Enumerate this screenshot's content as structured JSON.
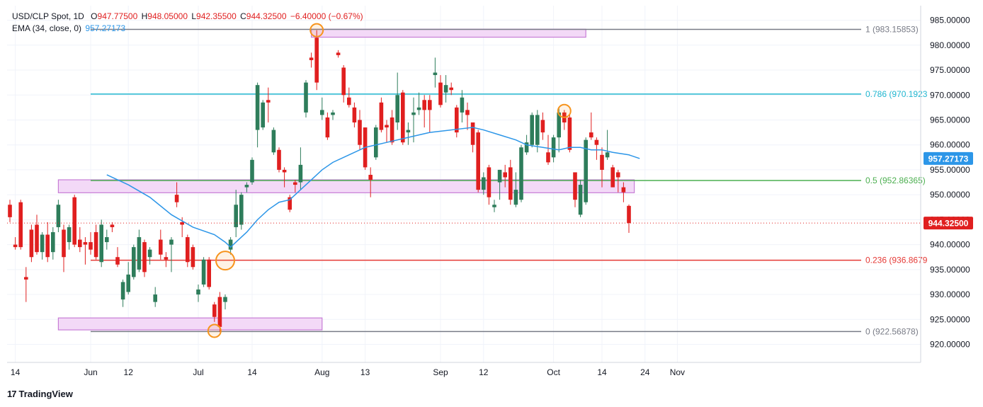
{
  "legend": {
    "symbol": "USD/CLP Spot, 1D",
    "o_label": "O",
    "o_value": "947.77500",
    "h_label": "H",
    "h_value": "948.05000",
    "l_label": "L",
    "l_value": "942.35500",
    "c_label": "C",
    "c_value": "944.32500",
    "change": "−6.40000 (−0.67%)",
    "ema_label": "EMA (34, close, 0)",
    "ema_value": "957.27173"
  },
  "brand": {
    "logo": "17",
    "name": "TradingView"
  },
  "colors": {
    "up": "#2e7d5b",
    "down": "#e01f1f",
    "ema": "#2c96e8",
    "fib_cyan": "#22b7d0",
    "fib_green": "#4caf50",
    "fib_red": "#e53935",
    "fib_gray": "#787b86",
    "zone_fill": "#f3d9f7",
    "zone_stroke": "#c77dd6",
    "circle": "#f7941d",
    "price_tag": "#e01f1f",
    "ema_tag": "#2c96e8"
  },
  "chart_data": {
    "type": "candlestick",
    "title": "USD/CLP Spot, 1D",
    "ylim": [
      917.0,
      987.0
    ],
    "y_ticks": [
      920,
      925,
      930,
      935,
      940,
      945,
      950,
      955,
      960,
      965,
      970,
      975,
      980,
      985
    ],
    "y_tick_labels": [
      "920.00000",
      "925.00000",
      "930.00000",
      "935.00000",
      "940.00000",
      "945.00000",
      "950.00000",
      "955.00000",
      "960.00000",
      "965.00000",
      "970.00000",
      "975.00000",
      "980.00000",
      "985.00000"
    ],
    "x_ticks": [
      {
        "label": "14",
        "date": "2024-05-14"
      },
      {
        "label": "Jun",
        "date": "2024-06-03"
      },
      {
        "label": "12",
        "date": "2024-06-12"
      },
      {
        "label": "Jul",
        "date": "2024-07-01"
      },
      {
        "label": "14",
        "date": "2024-07-15"
      },
      {
        "label": "Aug",
        "date": "2024-08-01"
      },
      {
        "label": "13",
        "date": "2024-08-13"
      },
      {
        "label": "Sep",
        "date": "2024-09-02"
      },
      {
        "label": "12",
        "date": "2024-09-12"
      },
      {
        "label": "Oct",
        "date": "2024-10-01"
      },
      {
        "label": "14",
        "date": "2024-10-14"
      },
      {
        "label": "24",
        "date": "2024-10-24"
      },
      {
        "label": "Nov",
        "date": "2024-11-01"
      }
    ],
    "candles": [
      {
        "o": 948.0,
        "h": 949.0,
        "l": 944.5,
        "c": 945.5
      },
      {
        "o": 940.0,
        "h": 941.5,
        "l": 939.0,
        "c": 939.5
      },
      {
        "o": 948.5,
        "h": 949.0,
        "l": 939.0,
        "c": 939.5
      },
      {
        "o": 933.5,
        "h": 935.5,
        "l": 928.5,
        "c": 933.0
      },
      {
        "o": 943.0,
        "h": 944.0,
        "l": 936.5,
        "c": 937.5
      },
      {
        "o": 944.0,
        "h": 946.0,
        "l": 938.0,
        "c": 938.5
      },
      {
        "o": 938.5,
        "h": 942.5,
        "l": 937.0,
        "c": 942.0
      },
      {
        "o": 942.0,
        "h": 944.5,
        "l": 936.5,
        "c": 937.5
      },
      {
        "o": 938.5,
        "h": 943.5,
        "l": 937.0,
        "c": 942.5
      },
      {
        "o": 943.5,
        "h": 949.0,
        "l": 942.5,
        "c": 948.0
      },
      {
        "o": 943.0,
        "h": 944.0,
        "l": 934.5,
        "c": 937.5
      },
      {
        "o": 940.5,
        "h": 944.0,
        "l": 939.0,
        "c": 943.5
      },
      {
        "o": 949.5,
        "h": 950.0,
        "l": 939.5,
        "c": 940.0
      },
      {
        "o": 941.0,
        "h": 943.5,
        "l": 938.5,
        "c": 939.5
      },
      {
        "o": 940.5,
        "h": 941.5,
        "l": 936.0,
        "c": 940.0
      },
      {
        "o": 940.5,
        "h": 942.5,
        "l": 938.0,
        "c": 939.0
      },
      {
        "o": 942.5,
        "h": 944.0,
        "l": 937.0,
        "c": 937.5
      },
      {
        "o": 936.5,
        "h": 945.0,
        "l": 935.5,
        "c": 944.0
      },
      {
        "o": 940.5,
        "h": 943.0,
        "l": 939.0,
        "c": 941.5
      },
      {
        "o": 944.0,
        "h": 944.5,
        "l": 942.5,
        "c": 943.5
      },
      {
        "o": 937.5,
        "h": 939.5,
        "l": 935.5,
        "c": 936.0
      },
      {
        "o": 929.0,
        "h": 933.0,
        "l": 927.5,
        "c": 932.5
      },
      {
        "o": 930.5,
        "h": 936.5,
        "l": 930.0,
        "c": 934.0
      },
      {
        "o": 933.5,
        "h": 940.0,
        "l": 933.0,
        "c": 939.5
      },
      {
        "o": 935.0,
        "h": 943.0,
        "l": 934.5,
        "c": 941.5
      },
      {
        "o": 940.5,
        "h": 941.0,
        "l": 933.5,
        "c": 934.5
      },
      {
        "o": 937.5,
        "h": 939.5,
        "l": 936.0,
        "c": 939.0
      },
      {
        "o": 928.5,
        "h": 931.5,
        "l": 927.5,
        "c": 930.0
      },
      {
        "o": 941.0,
        "h": 943.0,
        "l": 937.0,
        "c": 938.0
      },
      {
        "o": 937.5,
        "h": 938.5,
        "l": 935.5,
        "c": 937.0
      },
      {
        "o": 940.0,
        "h": 941.5,
        "l": 934.5,
        "c": 941.0
      },
      {
        "o": 950.0,
        "h": 952.5,
        "l": 947.5,
        "c": 948.5
      },
      {
        "o": 944.5,
        "h": 945.5,
        "l": 941.5,
        "c": 944.0
      },
      {
        "o": 941.5,
        "h": 942.0,
        "l": 935.5,
        "c": 936.5
      },
      {
        "o": 939.5,
        "h": 940.0,
        "l": 935.0,
        "c": 935.5
      },
      {
        "o": 930.0,
        "h": 932.0,
        "l": 928.5,
        "c": 931.0
      },
      {
        "o": 932.0,
        "h": 937.5,
        "l": 931.5,
        "c": 937.0
      },
      {
        "o": 937.0,
        "h": 937.5,
        "l": 931.0,
        "c": 931.5
      },
      {
        "o": 928.0,
        "h": 928.5,
        "l": 924.5,
        "c": 925.5
      },
      {
        "o": 929.5,
        "h": 930.5,
        "l": 922.5,
        "c": 923.5
      },
      {
        "o": 928.5,
        "h": 930.0,
        "l": 927.0,
        "c": 929.5
      },
      {
        "o": 939.0,
        "h": 941.5,
        "l": 938.0,
        "c": 941.0
      },
      {
        "o": 943.5,
        "h": 951.0,
        "l": 941.5,
        "c": 948.0
      },
      {
        "o": 944.0,
        "h": 950.5,
        "l": 943.0,
        "c": 950.0
      },
      {
        "o": 951.5,
        "h": 952.5,
        "l": 950.5,
        "c": 952.0
      },
      {
        "o": 952.5,
        "h": 957.5,
        "l": 952.0,
        "c": 957.0
      },
      {
        "o": 963.0,
        "h": 972.5,
        "l": 959.5,
        "c": 972.0
      },
      {
        "o": 963.5,
        "h": 969.0,
        "l": 963.0,
        "c": 968.5
      },
      {
        "o": 969.0,
        "h": 971.5,
        "l": 964.5,
        "c": 968.5
      },
      {
        "o": 958.5,
        "h": 963.5,
        "l": 958.0,
        "c": 963.0
      },
      {
        "o": 959.0,
        "h": 959.5,
        "l": 954.5,
        "c": 955.0
      },
      {
        "o": 955.0,
        "h": 955.5,
        "l": 951.5,
        "c": 954.5
      },
      {
        "o": 949.5,
        "h": 950.0,
        "l": 946.5,
        "c": 947.0
      },
      {
        "o": 952.5,
        "h": 953.0,
        "l": 950.5,
        "c": 952.0
      },
      {
        "o": 952.5,
        "h": 959.5,
        "l": 951.0,
        "c": 956.0
      },
      {
        "o": 966.5,
        "h": 973.0,
        "l": 965.5,
        "c": 972.5
      },
      {
        "o": 977.5,
        "h": 978.5,
        "l": 975.5,
        "c": 977.0
      },
      {
        "o": 981.5,
        "h": 983.0,
        "l": 971.0,
        "c": 972.5
      },
      {
        "o": 966.0,
        "h": 969.5,
        "l": 965.0,
        "c": 967.0
      },
      {
        "o": 965.5,
        "h": 966.5,
        "l": 961.0,
        "c": 961.5
      },
      {
        "o": 966.0,
        "h": 967.0,
        "l": 965.0,
        "c": 966.5
      },
      {
        "o": 978.5,
        "h": 979.0,
        "l": 977.5,
        "c": 978.0
      },
      {
        "o": 975.5,
        "h": 976.0,
        "l": 968.5,
        "c": 970.0
      },
      {
        "o": 969.5,
        "h": 971.5,
        "l": 967.5,
        "c": 968.0
      },
      {
        "o": 967.5,
        "h": 968.5,
        "l": 963.5,
        "c": 964.5
      },
      {
        "o": 965.0,
        "h": 967.0,
        "l": 959.0,
        "c": 960.0
      },
      {
        "o": 963.5,
        "h": 963.5,
        "l": 955.0,
        "c": 955.5
      },
      {
        "o": 954.0,
        "h": 955.5,
        "l": 949.5,
        "c": 953.0
      },
      {
        "o": 957.5,
        "h": 964.0,
        "l": 957.0,
        "c": 963.5
      },
      {
        "o": 968.5,
        "h": 969.5,
        "l": 962.5,
        "c": 963.0
      },
      {
        "o": 964.0,
        "h": 965.0,
        "l": 960.5,
        "c": 963.5
      },
      {
        "o": 965.5,
        "h": 967.0,
        "l": 960.0,
        "c": 960.5
      },
      {
        "o": 964.5,
        "h": 974.5,
        "l": 963.0,
        "c": 970.0
      },
      {
        "o": 970.5,
        "h": 971.0,
        "l": 960.0,
        "c": 960.5
      },
      {
        "o": 962.5,
        "h": 964.5,
        "l": 960.0,
        "c": 963.0
      },
      {
        "o": 966.0,
        "h": 969.5,
        "l": 960.5,
        "c": 966.5
      },
      {
        "o": 967.0,
        "h": 970.5,
        "l": 966.0,
        "c": 967.5
      },
      {
        "o": 969.0,
        "h": 970.0,
        "l": 963.5,
        "c": 967.0
      },
      {
        "o": 969.0,
        "h": 970.0,
        "l": 962.5,
        "c": 967.0
      },
      {
        "o": 974.0,
        "h": 977.5,
        "l": 971.5,
        "c": 974.5
      },
      {
        "o": 972.5,
        "h": 974.0,
        "l": 967.5,
        "c": 968.0
      },
      {
        "o": 970.5,
        "h": 974.0,
        "l": 968.5,
        "c": 972.0
      },
      {
        "o": 971.5,
        "h": 972.5,
        "l": 970.0,
        "c": 971.0
      },
      {
        "o": 967.5,
        "h": 968.0,
        "l": 961.5,
        "c": 962.5
      },
      {
        "o": 966.5,
        "h": 971.0,
        "l": 964.5,
        "c": 969.5
      },
      {
        "o": 967.0,
        "h": 968.5,
        "l": 963.0,
        "c": 966.0
      },
      {
        "o": 964.5,
        "h": 964.5,
        "l": 958.5,
        "c": 960.0
      },
      {
        "o": 962.5,
        "h": 963.0,
        "l": 950.5,
        "c": 951.0
      },
      {
        "o": 951.0,
        "h": 954.5,
        "l": 950.0,
        "c": 953.5
      },
      {
        "o": 955.5,
        "h": 956.0,
        "l": 948.0,
        "c": 949.5
      },
      {
        "o": 947.5,
        "h": 949.0,
        "l": 946.5,
        "c": 948.0
      },
      {
        "o": 952.5,
        "h": 955.0,
        "l": 949.0,
        "c": 955.0
      },
      {
        "o": 954.5,
        "h": 956.0,
        "l": 951.5,
        "c": 953.5
      },
      {
        "o": 955.5,
        "h": 957.0,
        "l": 948.0,
        "c": 949.0
      },
      {
        "o": 948.0,
        "h": 954.5,
        "l": 947.5,
        "c": 951.0
      },
      {
        "o": 949.0,
        "h": 960.0,
        "l": 948.5,
        "c": 959.5
      },
      {
        "o": 958.5,
        "h": 962.0,
        "l": 958.0,
        "c": 960.5
      },
      {
        "o": 960.0,
        "h": 966.5,
        "l": 959.5,
        "c": 966.0
      },
      {
        "o": 960.0,
        "h": 967.0,
        "l": 958.5,
        "c": 966.0
      },
      {
        "o": 965.0,
        "h": 966.5,
        "l": 961.0,
        "c": 962.5
      },
      {
        "o": 958.5,
        "h": 962.0,
        "l": 956.0,
        "c": 956.5
      },
      {
        "o": 957.5,
        "h": 962.0,
        "l": 956.5,
        "c": 961.5
      },
      {
        "o": 961.5,
        "h": 967.5,
        "l": 958.5,
        "c": 966.5
      },
      {
        "o": 966.5,
        "h": 967.0,
        "l": 963.0,
        "c": 964.5
      },
      {
        "o": 965.5,
        "h": 966.0,
        "l": 958.5,
        "c": 959.0
      },
      {
        "o": 954.5,
        "h": 954.5,
        "l": 947.5,
        "c": 949.0
      },
      {
        "o": 946.0,
        "h": 953.0,
        "l": 945.5,
        "c": 952.0
      },
      {
        "o": 948.5,
        "h": 961.5,
        "l": 948.0,
        "c": 961.0
      },
      {
        "o": 962.5,
        "h": 966.5,
        "l": 961.0,
        "c": 961.5
      },
      {
        "o": 961.0,
        "h": 961.5,
        "l": 957.0,
        "c": 960.0
      },
      {
        "o": 958.0,
        "h": 959.5,
        "l": 951.5,
        "c": 955.0
      },
      {
        "o": 957.5,
        "h": 963.0,
        "l": 957.0,
        "c": 958.5
      },
      {
        "o": 955.5,
        "h": 956.0,
        "l": 951.5,
        "c": 951.5
      },
      {
        "o": 954.5,
        "h": 955.0,
        "l": 950.5,
        "c": 953.5
      },
      {
        "o": 951.5,
        "h": 952.5,
        "l": 948.5,
        "c": 950.5
      },
      {
        "o": 947.775,
        "h": 948.05,
        "l": 942.355,
        "c": 944.325
      }
    ],
    "ema": {
      "label": "EMA (34, close, 0)",
      "value": "957.27173",
      "points": [
        [
          18,
          954.0
        ],
        [
          22,
          952.0
        ],
        [
          26,
          949.5
        ],
        [
          30,
          946.0
        ],
        [
          34,
          943.5
        ],
        [
          38,
          942.0
        ],
        [
          40,
          940.5
        ],
        [
          41,
          939.5
        ],
        [
          42,
          940.5
        ],
        [
          44,
          942.5
        ],
        [
          46,
          945.0
        ],
        [
          48,
          947.0
        ],
        [
          50,
          948.5
        ],
        [
          52,
          949.0
        ],
        [
          54,
          951.0
        ],
        [
          56,
          953.0
        ],
        [
          58,
          955.0
        ],
        [
          60,
          956.5
        ],
        [
          63,
          958.0
        ],
        [
          66,
          959.5
        ],
        [
          70,
          960.5
        ],
        [
          74,
          961.5
        ],
        [
          78,
          962.5
        ],
        [
          82,
          963.0
        ],
        [
          86,
          963.5
        ],
        [
          88,
          963.0
        ],
        [
          91,
          962.0
        ],
        [
          94,
          961.0
        ],
        [
          96,
          960.0
        ],
        [
          99,
          959.5
        ],
        [
          102,
          959.0
        ],
        [
          104,
          959.5
        ],
        [
          106,
          959.5
        ],
        [
          108,
          959.0
        ],
        [
          110,
          959.0
        ],
        [
          112,
          958.5
        ],
        [
          115,
          958.0
        ],
        [
          117,
          957.27173
        ]
      ]
    },
    "fib_levels": [
      {
        "ratio": "1",
        "label": "1 (983.15853)",
        "value": 983.15853
      },
      {
        "ratio": "0.786",
        "label": "0.786 (970.1923",
        "value": 970.1923
      },
      {
        "ratio": "0.5",
        "label": "0.5 (952.86365)",
        "value": 952.86365
      },
      {
        "ratio": "0.236",
        "label": "0.236 (936.8679",
        "value": 936.8679
      },
      {
        "ratio": "0",
        "label": "0 (922.56878)",
        "value": 922.56878
      }
    ],
    "zones": [
      {
        "from_index": 56,
        "to_index": 107,
        "low": 981.6,
        "high": 983.2
      },
      {
        "from_index": 9,
        "to_index": 116,
        "low": 950.4,
        "high": 953.0
      },
      {
        "from_index": 9,
        "to_index": 58,
        "low": 922.9,
        "high": 925.3
      }
    ],
    "circles": [
      {
        "index": 57,
        "value": 983.0
      },
      {
        "index": 40,
        "value": 936.8
      },
      {
        "index": 38,
        "value": 922.7
      },
      {
        "index": 103,
        "value": 966.8
      }
    ],
    "last_price": "944.32500",
    "last_value": 944.325,
    "ema_last": "957.27173",
    "ema_last_value": 957.27173
  }
}
